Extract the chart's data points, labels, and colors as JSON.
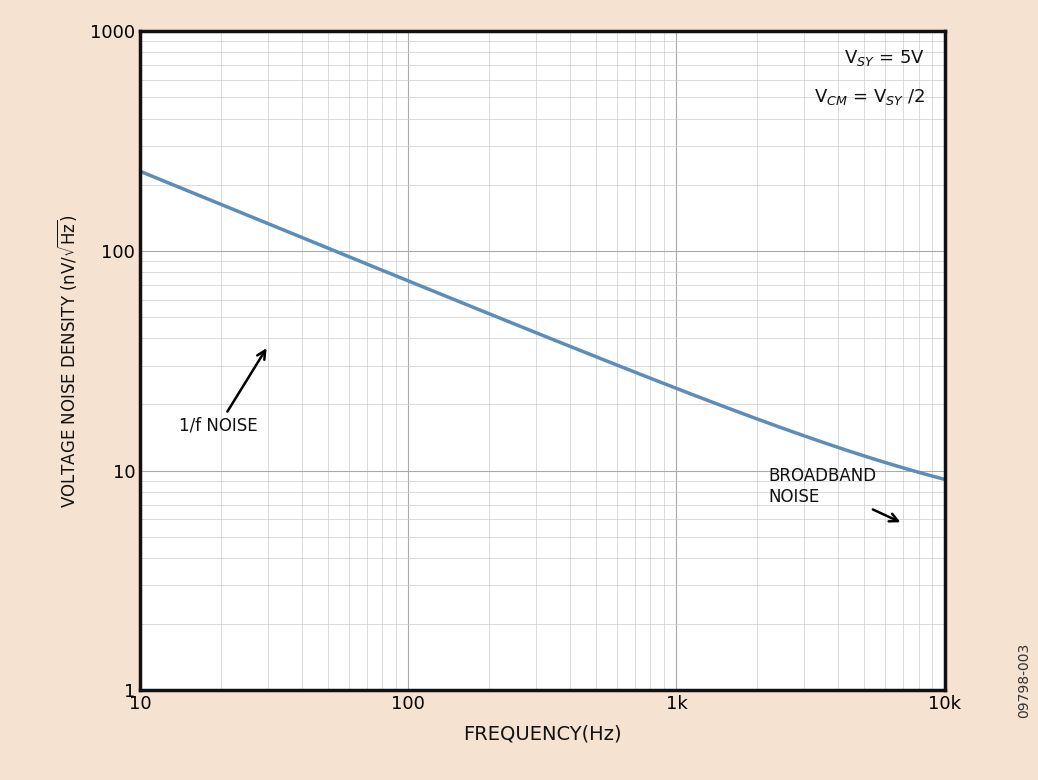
{
  "background_color": "#f5e2d0",
  "plot_bg_color": "#ffffff",
  "line_color": "#5b8db8",
  "line_width": 2.5,
  "xlabel": "FREQUENCY(Hz)",
  "ylabel": "VOLTAGE NOISE DENSITY (nV/√Hz)",
  "xlim": [
    10,
    10000
  ],
  "ylim": [
    1,
    1000
  ],
  "annotation_vsy_line1": "V$_{SY}$ = 5V",
  "annotation_vsy_line2": "V$_{CM}$ = V$_{SY}$ /2",
  "label_1f": "1/f NOISE",
  "label_bb": "BROADBAND\nNOISE",
  "watermark": "09798-003",
  "grid_major_color": "#aaaaaa",
  "grid_minor_color": "#cccccc",
  "noise_floor": 5.5,
  "f_start": 10,
  "f_end": 10000,
  "num_points": 1000,
  "A_coeff": 530000,
  "frame_color": "#111111",
  "frame_linewidth": 2.5
}
